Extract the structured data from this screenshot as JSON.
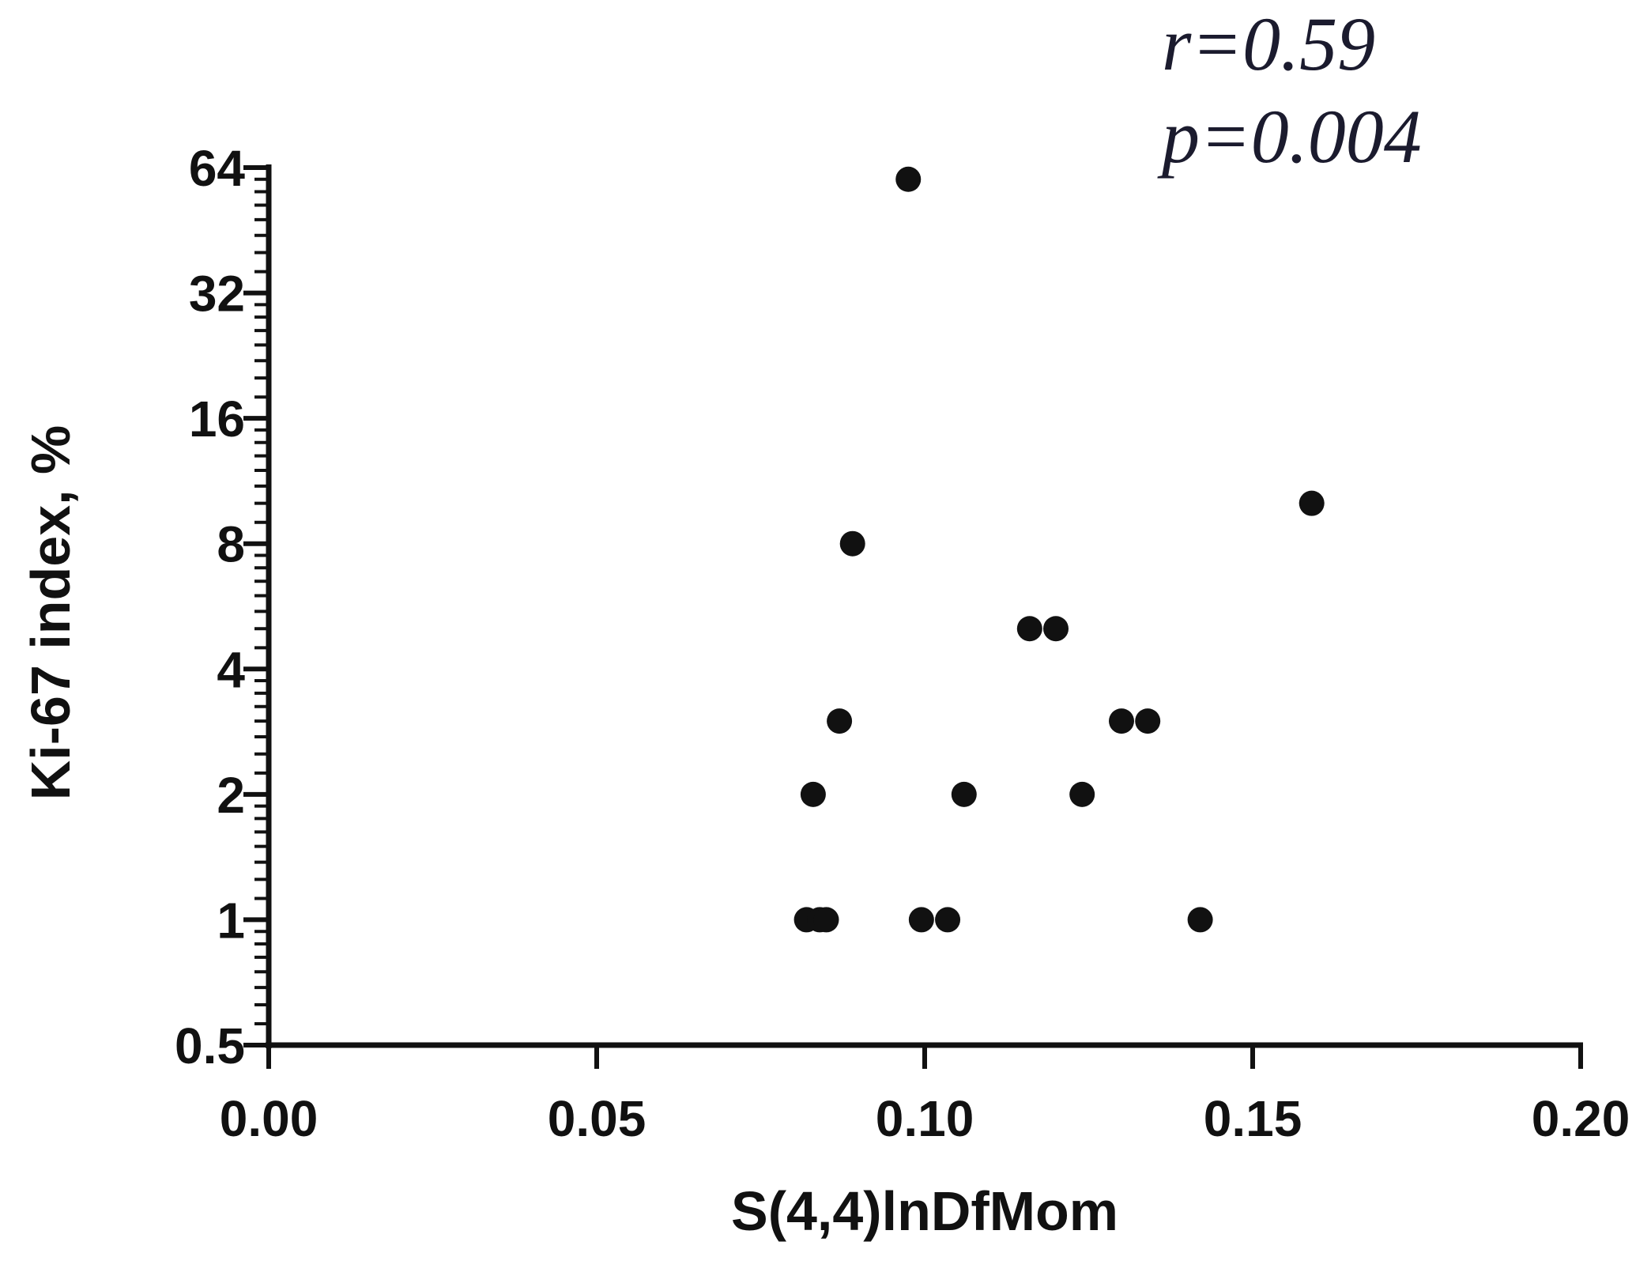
{
  "chart_data": {
    "type": "scatter",
    "title": "",
    "xlabel": "S(4,4)lnDfMom",
    "ylabel": "Ki-67 index, %",
    "xlim": [
      0.0,
      0.2
    ],
    "ylim": [
      0.5,
      64
    ],
    "yscale": "log2",
    "x_ticks": [
      "0.00",
      "0.05",
      "0.10",
      "0.15",
      "0.20"
    ],
    "y_ticks": [
      "0.5",
      "1",
      "2",
      "4",
      "8",
      "16",
      "32",
      "64"
    ],
    "grid": false,
    "legend": "none",
    "point_color": "#111111",
    "annotations": {
      "r": "r=0.59",
      "p": "p=0.004"
    },
    "series": [
      {
        "points": [
          {
            "x": 0.0975,
            "y": 60
          },
          {
            "x": 0.159,
            "y": 10
          },
          {
            "x": 0.089,
            "y": 8
          },
          {
            "x": 0.116,
            "y": 5
          },
          {
            "x": 0.12,
            "y": 5
          },
          {
            "x": 0.087,
            "y": 3
          },
          {
            "x": 0.13,
            "y": 3
          },
          {
            "x": 0.134,
            "y": 3
          },
          {
            "x": 0.083,
            "y": 2
          },
          {
            "x": 0.106,
            "y": 2
          },
          {
            "x": 0.124,
            "y": 2
          },
          {
            "x": 0.082,
            "y": 1
          },
          {
            "x": 0.084,
            "y": 1
          },
          {
            "x": 0.085,
            "y": 1
          },
          {
            "x": 0.0995,
            "y": 1
          },
          {
            "x": 0.1035,
            "y": 1
          },
          {
            "x": 0.142,
            "y": 1
          }
        ]
      }
    ]
  }
}
